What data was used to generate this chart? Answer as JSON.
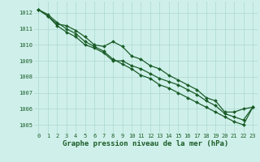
{
  "title": "Graphe pression niveau de la mer (hPa)",
  "background_color": "#cff0ea",
  "grid_color": "#aad8d0",
  "line_color": "#1a5c28",
  "text_color": "#1a5c28",
  "label_color": "#1a5c28",
  "xlim": [
    -0.5,
    23.5
  ],
  "ylim": [
    1004.5,
    1012.7
  ],
  "yticks": [
    1005,
    1006,
    1007,
    1008,
    1009,
    1010,
    1011,
    1012
  ],
  "xticks": [
    0,
    1,
    2,
    3,
    4,
    5,
    6,
    7,
    8,
    9,
    10,
    11,
    12,
    13,
    14,
    15,
    16,
    17,
    18,
    19,
    20,
    21,
    22,
    23
  ],
  "series": [
    [
      1012.2,
      1011.8,
      1011.3,
      1011.2,
      1010.9,
      1010.5,
      1010.0,
      1009.9,
      1010.2,
      1009.9,
      1009.3,
      1009.1,
      1008.7,
      1008.5,
      1008.1,
      1007.8,
      1007.5,
      1007.2,
      1006.7,
      1006.5,
      1005.8,
      1005.8,
      1006.0,
      1006.1
    ],
    [
      1012.2,
      1011.8,
      1011.2,
      1010.8,
      1010.5,
      1010.0,
      1009.8,
      1009.5,
      1009.0,
      1009.0,
      1008.7,
      1008.5,
      1008.2,
      1007.9,
      1007.7,
      1007.5,
      1007.2,
      1006.9,
      1006.5,
      1006.2,
      1005.7,
      1005.5,
      1005.3,
      1006.1
    ],
    [
      1012.2,
      1011.9,
      1011.4,
      1011.0,
      1010.7,
      1010.2,
      1009.9,
      1009.6,
      1009.1,
      1008.8,
      1008.5,
      1008.1,
      1007.9,
      1007.5,
      1007.3,
      1007.0,
      1006.7,
      1006.4,
      1006.1,
      1005.8,
      1005.5,
      1005.2,
      1005.0,
      1006.1
    ]
  ],
  "title_fontsize": 6.5,
  "tick_fontsize": 5.0,
  "linewidth": 0.9,
  "markersize": 2.0
}
